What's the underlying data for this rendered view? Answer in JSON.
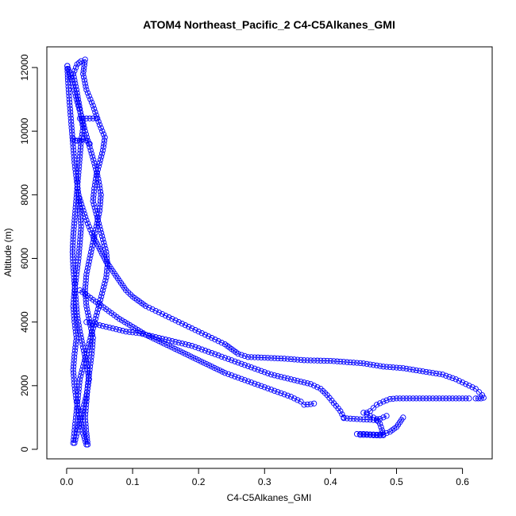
{
  "chart_data": {
    "type": "scatter",
    "title": "ATOM4 Northeast_Pacific_2 C4-C5Alkanes_GMI",
    "xlabel": "C4-C5Alkanes_GMI",
    "ylabel": "Altitude (m)",
    "xlim": [
      -0.03,
      0.645
    ],
    "ylim": [
      -300,
      12650
    ],
    "x_ticks": [
      0.0,
      0.1,
      0.2,
      0.3,
      0.4,
      0.5,
      0.6
    ],
    "x_tick_labels": [
      "0.0",
      "0.1",
      "0.2",
      "0.3",
      "0.4",
      "0.5",
      "0.6"
    ],
    "y_ticks": [
      0,
      2000,
      4000,
      6000,
      8000,
      10000,
      12000
    ],
    "y_tick_labels": [
      "0",
      "2000",
      "4000",
      "6000",
      "8000",
      "10000",
      "12000"
    ],
    "grid": false,
    "legend": "none",
    "marker": "open-circle",
    "connected_with_line": true,
    "color": "#0000ff",
    "series": [
      {
        "values": [
          [
            0.03,
            150
          ],
          [
            0.025,
            500
          ],
          [
            0.02,
            1000
          ],
          [
            0.015,
            1500
          ],
          [
            0.012,
            2000
          ],
          [
            0.01,
            2500
          ],
          [
            0.012,
            3000
          ],
          [
            0.015,
            3500
          ],
          [
            0.012,
            4000
          ],
          [
            0.01,
            4500
          ],
          [
            0.012,
            5000
          ],
          [
            0.015,
            5500
          ],
          [
            0.018,
            6000
          ],
          [
            0.02,
            6500
          ],
          [
            0.022,
            7000
          ],
          [
            0.02,
            7500
          ],
          [
            0.018,
            8000
          ],
          [
            0.015,
            8500
          ],
          [
            0.012,
            9000
          ],
          [
            0.01,
            9500
          ],
          [
            0.008,
            10000
          ],
          [
            0.006,
            10500
          ],
          [
            0.004,
            11000
          ],
          [
            0.002,
            11600
          ],
          [
            0.001,
            12050
          ]
        ]
      },
      {
        "values": [
          [
            0.001,
            12050
          ],
          [
            0.008,
            11600
          ],
          [
            0.015,
            11000
          ],
          [
            0.022,
            10500
          ],
          [
            0.028,
            10000
          ],
          [
            0.035,
            9500
          ],
          [
            0.042,
            9000
          ],
          [
            0.048,
            8500
          ],
          [
            0.052,
            8000
          ],
          [
            0.05,
            7500
          ],
          [
            0.045,
            7000
          ],
          [
            0.04,
            6500
          ],
          [
            0.035,
            6000
          ],
          [
            0.03,
            5500
          ],
          [
            0.028,
            5000
          ],
          [
            0.03,
            4500
          ],
          [
            0.035,
            4000
          ],
          [
            0.04,
            3500
          ],
          [
            0.038,
            3000
          ],
          [
            0.035,
            2500
          ],
          [
            0.032,
            2000
          ],
          [
            0.03,
            1500
          ],
          [
            0.028,
            1000
          ],
          [
            0.03,
            500
          ],
          [
            0.032,
            150
          ]
        ]
      },
      {
        "values": [
          [
            0.012,
            200
          ],
          [
            0.018,
            700
          ],
          [
            0.024,
            1200
          ],
          [
            0.03,
            1700
          ],
          [
            0.034,
            2200
          ],
          [
            0.03,
            2700
          ],
          [
            0.025,
            3200
          ],
          [
            0.02,
            3700
          ],
          [
            0.016,
            4200
          ],
          [
            0.014,
            4700
          ],
          [
            0.012,
            5200
          ],
          [
            0.01,
            5700
          ],
          [
            0.009,
            6200
          ],
          [
            0.01,
            6700
          ],
          [
            0.012,
            7200
          ],
          [
            0.014,
            7700
          ],
          [
            0.016,
            8200
          ],
          [
            0.018,
            8700
          ],
          [
            0.02,
            9200
          ],
          [
            0.022,
            9700
          ],
          [
            0.025,
            10100
          ],
          [
            0.02,
            10700
          ],
          [
            0.015,
            11300
          ],
          [
            0.01,
            11800
          ]
        ]
      },
      {
        "values": [
          [
            0.01,
            11800
          ],
          [
            0.016,
            12100
          ],
          [
            0.022,
            12200
          ],
          [
            0.028,
            12250
          ],
          [
            0.025,
            11800
          ],
          [
            0.03,
            11300
          ],
          [
            0.04,
            10800
          ],
          [
            0.05,
            10200
          ],
          [
            0.058,
            9800
          ],
          [
            0.055,
            9400
          ],
          [
            0.05,
            9000
          ],
          [
            0.045,
            8600
          ],
          [
            0.042,
            8200
          ],
          [
            0.04,
            7800
          ],
          [
            0.045,
            7400
          ],
          [
            0.05,
            7000
          ],
          [
            0.055,
            6600
          ],
          [
            0.06,
            6200
          ],
          [
            0.062,
            5800
          ],
          [
            0.06,
            5400
          ],
          [
            0.055,
            5000
          ],
          [
            0.05,
            4600
          ],
          [
            0.045,
            4200
          ],
          [
            0.04,
            3800
          ],
          [
            0.035,
            3400
          ],
          [
            0.03,
            3000
          ],
          [
            0.025,
            2600
          ],
          [
            0.02,
            2200
          ],
          [
            0.018,
            1800
          ],
          [
            0.016,
            1400
          ],
          [
            0.014,
            1000
          ],
          [
            0.012,
            600
          ],
          [
            0.01,
            200
          ]
        ]
      },
      {
        "values": [
          [
            0.02,
            10400
          ],
          [
            0.025,
            10400
          ],
          [
            0.03,
            10400
          ],
          [
            0.035,
            10400
          ],
          [
            0.04,
            10400
          ],
          [
            0.045,
            10400
          ]
        ]
      },
      {
        "values": [
          [
            0.01,
            9750
          ],
          [
            0.013,
            9700
          ],
          [
            0.016,
            9700
          ],
          [
            0.02,
            9700
          ],
          [
            0.025,
            9750
          ],
          [
            0.03,
            9700
          ],
          [
            0.035,
            9600
          ]
        ]
      },
      {
        "values": [
          [
            0.018,
            8000
          ],
          [
            0.03,
            7200
          ],
          [
            0.04,
            6700
          ],
          [
            0.05,
            6300
          ],
          [
            0.06,
            5900
          ],
          [
            0.07,
            5600
          ],
          [
            0.08,
            5300
          ],
          [
            0.09,
            5000
          ],
          [
            0.1,
            4800
          ],
          [
            0.11,
            4650
          ],
          [
            0.12,
            4500
          ],
          [
            0.13,
            4400
          ],
          [
            0.14,
            4300
          ],
          [
            0.15,
            4200
          ],
          [
            0.16,
            4100
          ],
          [
            0.17,
            4000
          ],
          [
            0.18,
            3900
          ],
          [
            0.19,
            3800
          ],
          [
            0.2,
            3700
          ],
          [
            0.21,
            3600
          ],
          [
            0.22,
            3500
          ],
          [
            0.23,
            3400
          ],
          [
            0.24,
            3300
          ],
          [
            0.25,
            3150
          ],
          [
            0.26,
            3000
          ],
          [
            0.275,
            2900
          ],
          [
            0.3,
            2880
          ],
          [
            0.33,
            2850
          ],
          [
            0.36,
            2800
          ],
          [
            0.4,
            2780
          ],
          [
            0.45,
            2700
          ],
          [
            0.48,
            2600
          ],
          [
            0.51,
            2550
          ],
          [
            0.54,
            2450
          ],
          [
            0.57,
            2350
          ],
          [
            0.59,
            2200
          ],
          [
            0.6,
            2100
          ],
          [
            0.61,
            2000
          ],
          [
            0.62,
            1900
          ],
          [
            0.625,
            1800
          ],
          [
            0.63,
            1700
          ],
          [
            0.632,
            1620
          ],
          [
            0.628,
            1600
          ],
          [
            0.62,
            1600
          ]
        ]
      },
      {
        "values": [
          [
            0.61,
            1600
          ],
          [
            0.58,
            1600
          ],
          [
            0.56,
            1600
          ],
          [
            0.54,
            1600
          ],
          [
            0.52,
            1600
          ],
          [
            0.5,
            1600
          ],
          [
            0.49,
            1580
          ],
          [
            0.48,
            1500
          ],
          [
            0.47,
            1400
          ],
          [
            0.465,
            1300
          ],
          [
            0.46,
            1200
          ],
          [
            0.455,
            1150
          ]
        ]
      },
      {
        "values": [
          [
            0.03,
            4000
          ],
          [
            0.05,
            3900
          ],
          [
            0.07,
            3800
          ],
          [
            0.09,
            3700
          ],
          [
            0.11,
            3650
          ],
          [
            0.13,
            3550
          ],
          [
            0.15,
            3450
          ],
          [
            0.17,
            3350
          ],
          [
            0.19,
            3250
          ],
          [
            0.21,
            3100
          ],
          [
            0.23,
            2950
          ],
          [
            0.25,
            2800
          ],
          [
            0.27,
            2650
          ],
          [
            0.29,
            2500
          ],
          [
            0.31,
            2350
          ],
          [
            0.33,
            2250
          ],
          [
            0.35,
            2150
          ],
          [
            0.37,
            2050
          ],
          [
            0.385,
            1900
          ],
          [
            0.395,
            1700
          ],
          [
            0.405,
            1450
          ],
          [
            0.415,
            1200
          ],
          [
            0.42,
            1000
          ]
        ]
      },
      {
        "values": [
          [
            0.02,
            5000
          ],
          [
            0.04,
            4700
          ],
          [
            0.06,
            4400
          ],
          [
            0.08,
            4100
          ],
          [
            0.1,
            3850
          ],
          [
            0.12,
            3600
          ],
          [
            0.14,
            3400
          ],
          [
            0.16,
            3200
          ],
          [
            0.18,
            3000
          ],
          [
            0.2,
            2800
          ],
          [
            0.22,
            2600
          ],
          [
            0.24,
            2400
          ],
          [
            0.26,
            2250
          ],
          [
            0.28,
            2100
          ],
          [
            0.3,
            1950
          ],
          [
            0.32,
            1800
          ],
          [
            0.34,
            1650
          ],
          [
            0.355,
            1500
          ],
          [
            0.36,
            1400
          ],
          [
            0.37,
            1420
          ],
          [
            0.375,
            1440
          ]
        ]
      },
      {
        "values": [
          [
            0.44,
            480
          ],
          [
            0.45,
            480
          ],
          [
            0.46,
            470
          ],
          [
            0.47,
            460
          ],
          [
            0.48,
            470
          ],
          [
            0.49,
            550
          ],
          [
            0.5,
            700
          ],
          [
            0.505,
            850
          ],
          [
            0.51,
            1000
          ]
        ]
      },
      {
        "values": [
          [
            0.445,
            450
          ],
          [
            0.455,
            450
          ],
          [
            0.465,
            440
          ],
          [
            0.475,
            430
          ],
          [
            0.48,
            440
          ],
          [
            0.478,
            600
          ],
          [
            0.475,
            800
          ],
          [
            0.47,
            950
          ],
          [
            0.46,
            1050
          ],
          [
            0.45,
            1150
          ]
        ]
      },
      {
        "values": [
          [
            0.42,
            980
          ],
          [
            0.44,
            950
          ],
          [
            0.46,
            930
          ],
          [
            0.47,
            910
          ],
          [
            0.485,
            1050
          ]
        ]
      }
    ]
  }
}
